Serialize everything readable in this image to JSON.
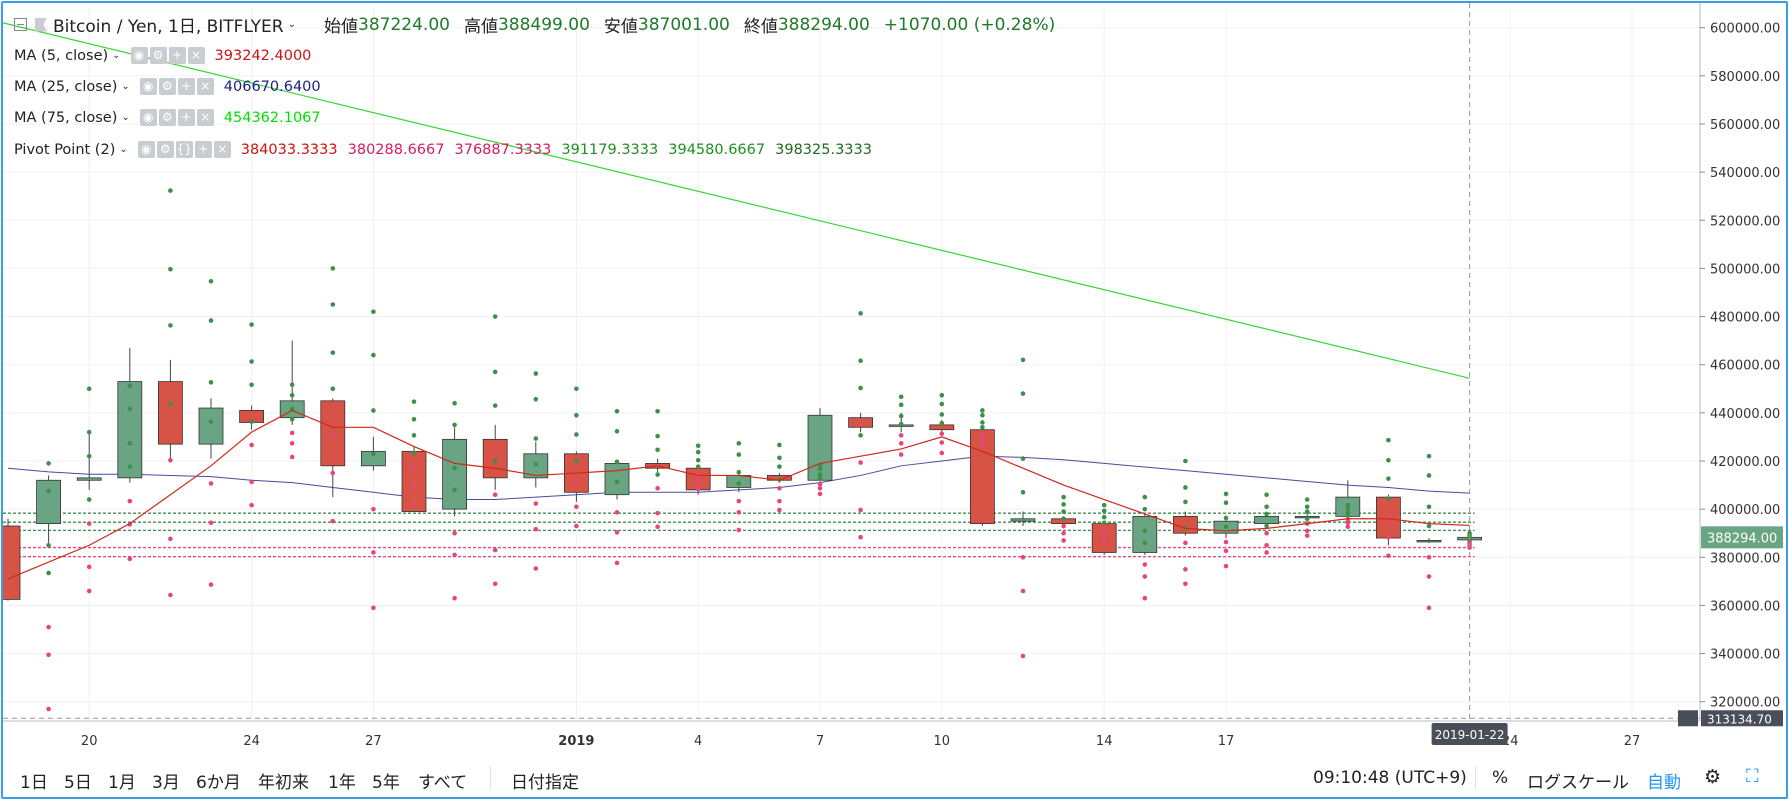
{
  "header": {
    "symbol": "Bitcoin / Yen, 1日, BITFLYER",
    "open_label": "始値",
    "open": "387224.00",
    "high_label": "高値",
    "high": "388499.00",
    "low_label": "安値",
    "low": "387001.00",
    "close_label": "終値",
    "close": "388294.00",
    "change": "+1070.00 (+0.28%)"
  },
  "indicators": [
    {
      "name": "MA (5, close)",
      "values": [
        "393242.4000"
      ],
      "colors": [
        "#cc1111"
      ]
    },
    {
      "name": "MA (25, close)",
      "values": [
        "406670.6400"
      ],
      "colors": [
        "#1a237e"
      ]
    },
    {
      "name": "MA (75, close)",
      "values": [
        "454362.1067"
      ],
      "colors": [
        "#00e000"
      ]
    },
    {
      "name": "Pivot Point (2)",
      "values": [
        "384033.3333",
        "380288.6667",
        "376887.3333",
        "391179.3333",
        "394580.6667",
        "398325.3333"
      ],
      "colors": [
        "#cc1111",
        "#d81b60",
        "#d81b60",
        "#1f8f1f",
        "#1f8f1f",
        "#1f6b1f"
      ]
    }
  ],
  "toolbar": {
    "ranges": [
      "1日",
      "5日",
      "1月",
      "3月",
      "6か月",
      "年初来",
      "1年",
      "5年",
      "すべて"
    ],
    "date_range": "日付指定",
    "time": "09:10:48 (UTC+9)",
    "percent": "%",
    "log": "ログスケール",
    "auto": "自動"
  },
  "colors": {
    "up": "#6aa583",
    "down": "#d65345",
    "ma5": "#d0281c",
    "ma25": "#4a4a9c",
    "ma75": "#35d635",
    "pivot_res": "#e8457a",
    "pivot_sup": "#3e8f4a",
    "last_price": "#6aa583",
    "frame": "#3a9ee6"
  },
  "chart_data": {
    "type": "candlestick",
    "title": "Bitcoin / Yen, 1日, BITFLYER",
    "ylim": [
      312000,
      609000
    ],
    "y_ticks": [
      "320000.00",
      "340000.00",
      "360000.00",
      "380000.00",
      "400000.00",
      "420000.00",
      "440000.00",
      "460000.00",
      "480000.00",
      "500000.00",
      "520000.00",
      "540000.00",
      "560000.00",
      "580000.00",
      "600000.00"
    ],
    "x_tick_labels": [
      {
        "label": "20",
        "index": 2
      },
      {
        "label": "24",
        "index": 6
      },
      {
        "label": "27",
        "index": 9
      },
      {
        "label": "2019",
        "index": 14
      },
      {
        "label": "4",
        "index": 17
      },
      {
        "label": "7",
        "index": 20
      },
      {
        "label": "10",
        "index": 23
      },
      {
        "label": "14",
        "index": 27
      },
      {
        "label": "17",
        "index": 30
      },
      {
        "label": "24",
        "index": 37
      },
      {
        "label": "27",
        "index": 40
      }
    ],
    "crosshair_label": "2019-01-22",
    "last_price_label": "388294.00",
    "bottom_price_label": "313134.70",
    "candles": [
      {
        "o": 393000,
        "h": 396000,
        "l": 362000,
        "c": 362500
      },
      {
        "o": 394000,
        "h": 414000,
        "l": 386000,
        "c": 412000
      },
      {
        "o": 412000,
        "h": 432000,
        "l": 408000,
        "c": 413000
      },
      {
        "o": 413000,
        "h": 467000,
        "l": 411000,
        "c": 453000
      },
      {
        "o": 453000,
        "h": 462000,
        "l": 420000,
        "c": 427000
      },
      {
        "o": 427000,
        "h": 446000,
        "l": 421000,
        "c": 442000
      },
      {
        "o": 441000,
        "h": 443000,
        "l": 433000,
        "c": 436000
      },
      {
        "o": 438000,
        "h": 470000,
        "l": 435000,
        "c": 445000
      },
      {
        "o": 445000,
        "h": 446000,
        "l": 405000,
        "c": 418000
      },
      {
        "o": 418000,
        "h": 430000,
        "l": 416000,
        "c": 424000
      },
      {
        "o": 424000,
        "h": 426000,
        "l": 399000,
        "c": 399000
      },
      {
        "o": 400000,
        "h": 434000,
        "l": 397000,
        "c": 429000
      },
      {
        "o": 429000,
        "h": 435000,
        "l": 408000,
        "c": 413000
      },
      {
        "o": 413000,
        "h": 428000,
        "l": 409000,
        "c": 423000
      },
      {
        "o": 423000,
        "h": 424000,
        "l": 403000,
        "c": 407000
      },
      {
        "o": 406000,
        "h": 420000,
        "l": 404000,
        "c": 419000
      },
      {
        "o": 419000,
        "h": 421000,
        "l": 415000,
        "c": 417000
      },
      {
        "o": 417000,
        "h": 418000,
        "l": 406000,
        "c": 408000
      },
      {
        "o": 409000,
        "h": 416000,
        "l": 407000,
        "c": 414000
      },
      {
        "o": 414000,
        "h": 415000,
        "l": 411000,
        "c": 412000
      },
      {
        "o": 412000,
        "h": 442000,
        "l": 411000,
        "c": 439000
      },
      {
        "o": 438000,
        "h": 440000,
        "l": 432000,
        "c": 434000
      },
      {
        "o": 435000,
        "h": 440000,
        "l": 432000,
        "c": 435000
      },
      {
        "o": 435000,
        "h": 437000,
        "l": 432000,
        "c": 433000
      },
      {
        "o": 433000,
        "h": 434000,
        "l": 393000,
        "c": 394000
      },
      {
        "o": 395000,
        "h": 399000,
        "l": 393000,
        "c": 396000
      },
      {
        "o": 396000,
        "h": 397000,
        "l": 392000,
        "c": 394000
      },
      {
        "o": 394000,
        "h": 395000,
        "l": 381000,
        "c": 382000
      },
      {
        "o": 382000,
        "h": 398000,
        "l": 381000,
        "c": 397000
      },
      {
        "o": 397000,
        "h": 399000,
        "l": 389000,
        "c": 390000
      },
      {
        "o": 390000,
        "h": 396000,
        "l": 388000,
        "c": 395000
      },
      {
        "o": 394000,
        "h": 398000,
        "l": 393000,
        "c": 397000
      },
      {
        "o": 397000,
        "h": 399000,
        "l": 396000,
        "c": 397000
      },
      {
        "o": 397000,
        "h": 412000,
        "l": 396000,
        "c": 405000
      },
      {
        "o": 405000,
        "h": 406000,
        "l": 385000,
        "c": 388000
      },
      {
        "o": 387000,
        "h": 388000,
        "l": 386000,
        "c": 387000
      },
      {
        "o": 387224,
        "h": 388499,
        "l": 387001,
        "c": 388294
      }
    ],
    "ma5": [
      371000,
      378000,
      385000,
      394000,
      406000,
      418000,
      432000,
      441000,
      434000,
      434000,
      426000,
      419000,
      417000,
      414000,
      415000,
      416000,
      418000,
      414000,
      414000,
      412000,
      419000,
      422000,
      425000,
      430000,
      424000,
      417000,
      410000,
      404000,
      398000,
      392000,
      391000,
      392000,
      394000,
      396000,
      396000,
      394000,
      393242
    ],
    "ma25": [
      417000,
      415500,
      414500,
      414500,
      414000,
      413500,
      412000,
      411000,
      409000,
      407000,
      405000,
      404000,
      404000,
      405000,
      406000,
      407000,
      407000,
      407000,
      408000,
      409000,
      411000,
      414000,
      418000,
      420000,
      422000,
      421500,
      420500,
      419000,
      417500,
      416000,
      414500,
      413000,
      411500,
      410000,
      409000,
      407500,
      406670
    ],
    "ma75_line": {
      "start": 602000,
      "end": 454362
    },
    "pivot_levels": {
      "R1": 398325,
      "R2": 394580,
      "P": 391179,
      "S1": 384033,
      "S2": 380288,
      "S3": 376887
    }
  }
}
